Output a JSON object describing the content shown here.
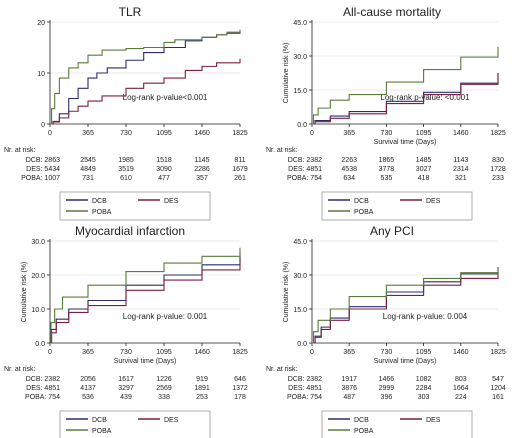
{
  "chart_data": [
    {
      "type": "line",
      "title": "TLR",
      "ylabel": "",
      "xlabel": "",
      "xlim": [
        0,
        1825
      ],
      "ylim": [
        0,
        20
      ],
      "xticks": [
        0,
        365,
        730,
        1095,
        1460,
        1825
      ],
      "xtick_labels": [
        "0",
        "365",
        "730",
        "1095",
        "1460",
        "1825"
      ],
      "yticks": [
        0,
        10,
        20
      ],
      "ytick_labels": [
        "0",
        "10",
        "20"
      ],
      "annotation": "Log-rank p-value<0.001",
      "series": [
        {
          "name": "DCB",
          "color": "#2b2b6e",
          "x": [
            0,
            30,
            90,
            180,
            270,
            365,
            450,
            550,
            730,
            900,
            1095,
            1300,
            1460,
            1600,
            1700,
            1825
          ],
          "y": [
            0,
            0.5,
            2.0,
            5.0,
            7.0,
            9.0,
            10.0,
            11.0,
            12.5,
            14.0,
            15.0,
            16.3,
            17.0,
            17.5,
            17.8,
            18.0
          ]
        },
        {
          "name": "DES",
          "color": "#7a1f3d",
          "x": [
            0,
            30,
            90,
            180,
            270,
            365,
            500,
            730,
            900,
            1095,
            1300,
            1460,
            1600,
            1825
          ],
          "y": [
            0,
            0.4,
            1.2,
            2.5,
            3.5,
            4.5,
            5.5,
            7.0,
            8.0,
            9.0,
            10.5,
            11.3,
            12.0,
            12.8
          ]
        },
        {
          "name": "POBA",
          "color": "#5a7a3a",
          "x": [
            0,
            15,
            45,
            90,
            180,
            270,
            365,
            500,
            730,
            900,
            1095,
            1200,
            1460,
            1600,
            1700,
            1825
          ],
          "y": [
            0,
            3.0,
            6.0,
            9.0,
            11.0,
            12.0,
            13.5,
            14.5,
            14.8,
            15.0,
            16.0,
            16.5,
            17.0,
            17.5,
            18.0,
            18.5
          ]
        }
      ],
      "risk_table": {
        "heading": "Nr. at risk:",
        "rows": [
          {
            "label": "DCB: 2863",
            "values": [
              "2545",
              "1985",
              "1518",
              "1145",
              "811"
            ]
          },
          {
            "label": "DES: 5434",
            "values": [
              "4849",
              "3519",
              "3090",
              "2286",
              "1679"
            ]
          },
          {
            "label": "POBA: 1007",
            "values": [
              "731",
              "610",
              "477",
              "357",
              "261"
            ]
          }
        ]
      }
    },
    {
      "type": "line",
      "title": "All-cause mortality",
      "ylabel": "Cumulative risk (%)",
      "xlabel": "Survival time (Days)",
      "xlim": [
        0,
        1825
      ],
      "ylim": [
        0,
        45
      ],
      "xticks": [
        0,
        365,
        730,
        1095,
        1460,
        1825
      ],
      "xtick_labels": [
        "0",
        "365",
        "730",
        "1095",
        "1460",
        "1825"
      ],
      "yticks": [
        0,
        15,
        30,
        45
      ],
      "ytick_labels": [
        "0.0",
        "15.0",
        "30.0",
        "45.0"
      ],
      "annotation": "Log-rank p-value: <0.001",
      "series": [
        {
          "name": "DCB",
          "color": "#2b2b6e",
          "x": [
            0,
            30,
            180,
            365,
            730,
            1095,
            1460,
            1825
          ],
          "y": [
            0,
            1.5,
            3.5,
            5.5,
            10.0,
            14.0,
            18.0,
            22.5
          ]
        },
        {
          "name": "DES",
          "color": "#7a1f3d",
          "x": [
            0,
            30,
            180,
            365,
            730,
            1095,
            1460,
            1825
          ],
          "y": [
            0,
            1.0,
            2.5,
            4.5,
            9.0,
            13.0,
            17.5,
            22.0
          ]
        },
        {
          "name": "POBA",
          "color": "#5a7a3a",
          "x": [
            0,
            15,
            60,
            180,
            365,
            730,
            1095,
            1460,
            1825
          ],
          "y": [
            0,
            4.0,
            7.0,
            10.5,
            13.0,
            18.5,
            24.0,
            29.5,
            34.0
          ]
        }
      ],
      "risk_table": {
        "heading": "Nr. at risk:",
        "rows": [
          {
            "label": "DCB: 2382",
            "values": [
              "2263",
              "1865",
              "1485",
              "1143",
              "830"
            ]
          },
          {
            "label": "DES: 4851",
            "values": [
              "4538",
              "3778",
              "3027",
              "2314",
              "1728"
            ]
          },
          {
            "label": "POBA: 754",
            "values": [
              "634",
              "535",
              "418",
              "321",
              "233"
            ]
          }
        ]
      }
    },
    {
      "type": "line",
      "title": "Myocardial infarction",
      "ylabel": "Cumulative risk (%)",
      "xlabel": "Survival time (Days)",
      "xlim": [
        0,
        1825
      ],
      "ylim": [
        0,
        30
      ],
      "xticks": [
        0,
        365,
        730,
        1095,
        1460,
        1825
      ],
      "xtick_labels": [
        "0",
        "365",
        "730",
        "1095",
        "1460",
        "1825"
      ],
      "yticks": [
        0,
        10,
        20,
        30
      ],
      "ytick_labels": [
        "0.0",
        "10.0",
        "20.0",
        "30.0"
      ],
      "annotation": "Log-rank p-value: 0.001",
      "series": [
        {
          "name": "DCB",
          "color": "#2b2b6e",
          "x": [
            0,
            15,
            60,
            180,
            365,
            730,
            1095,
            1460,
            1825
          ],
          "y": [
            0,
            4.0,
            7.0,
            10.0,
            12.5,
            17.0,
            20.0,
            23.0,
            26.5
          ]
        },
        {
          "name": "DES",
          "color": "#7a1f3d",
          "x": [
            0,
            15,
            60,
            180,
            365,
            730,
            1095,
            1460,
            1825
          ],
          "y": [
            0,
            3.0,
            6.0,
            9.0,
            11.0,
            15.5,
            18.5,
            21.5,
            24.5
          ]
        },
        {
          "name": "POBA",
          "color": "#5a7a3a",
          "x": [
            0,
            10,
            45,
            120,
            365,
            730,
            1095,
            1460,
            1825
          ],
          "y": [
            0,
            6.0,
            10.0,
            13.5,
            17.0,
            21.0,
            23.5,
            25.5,
            28.0
          ]
        }
      ],
      "risk_table": {
        "heading": "Nr. at risk:",
        "rows": [
          {
            "label": "DCB: 2382",
            "values": [
              "2056",
              "1617",
              "1226",
              "919",
              "646"
            ]
          },
          {
            "label": "DES: 4851",
            "values": [
              "4137",
              "3297",
              "2569",
              "1891",
              "1372"
            ]
          },
          {
            "label": "POBA: 754",
            "values": [
              "536",
              "439",
              "338",
              "253",
              "178"
            ]
          }
        ]
      }
    },
    {
      "type": "line",
      "title": "Any PCI",
      "ylabel": "Cumulative risk (%)",
      "xlabel": "Survival time (Days)",
      "xlim": [
        0,
        1825
      ],
      "ylim": [
        0,
        45
      ],
      "xticks": [
        0,
        365,
        730,
        1095,
        1460,
        1825
      ],
      "xtick_labels": [
        "0",
        "365",
        "730",
        "1095",
        "1460",
        "1825"
      ],
      "yticks": [
        0,
        15,
        30,
        45
      ],
      "ytick_labels": [
        "0.0",
        "15.0",
        "30.0",
        "45.0"
      ],
      "annotation": "Log-rank p-value: 0.004",
      "series": [
        {
          "name": "DCB",
          "color": "#2b2b6e",
          "x": [
            0,
            30,
            90,
            180,
            365,
            730,
            1095,
            1460,
            1825
          ],
          "y": [
            0,
            3.0,
            7.0,
            11.0,
            16.0,
            22.5,
            27.0,
            30.5,
            33.5
          ]
        },
        {
          "name": "DES",
          "color": "#7a1f3d",
          "x": [
            0,
            30,
            90,
            180,
            365,
            730,
            1095,
            1460,
            1825
          ],
          "y": [
            0,
            2.5,
            6.0,
            10.0,
            15.0,
            21.0,
            25.5,
            28.5,
            31.0
          ]
        },
        {
          "name": "POBA",
          "color": "#5a7a3a",
          "x": [
            0,
            15,
            60,
            180,
            365,
            730,
            1095,
            1460,
            1825
          ],
          "y": [
            0,
            5.0,
            10.0,
            15.0,
            20.5,
            25.5,
            28.5,
            31.0,
            33.0
          ]
        }
      ],
      "risk_table": {
        "heading": "Nr. at risk:",
        "rows": [
          {
            "label": "DCB: 2382",
            "values": [
              "1917",
              "1466",
              "1082",
              "803",
              "547"
            ]
          },
          {
            "label": "DES: 4851",
            "values": [
              "3876",
              "2999",
              "2284",
              "1664",
              "1204"
            ]
          },
          {
            "label": "POBA: 754",
            "values": [
              "487",
              "396",
              "303",
              "224",
              "161"
            ]
          }
        ]
      }
    }
  ]
}
